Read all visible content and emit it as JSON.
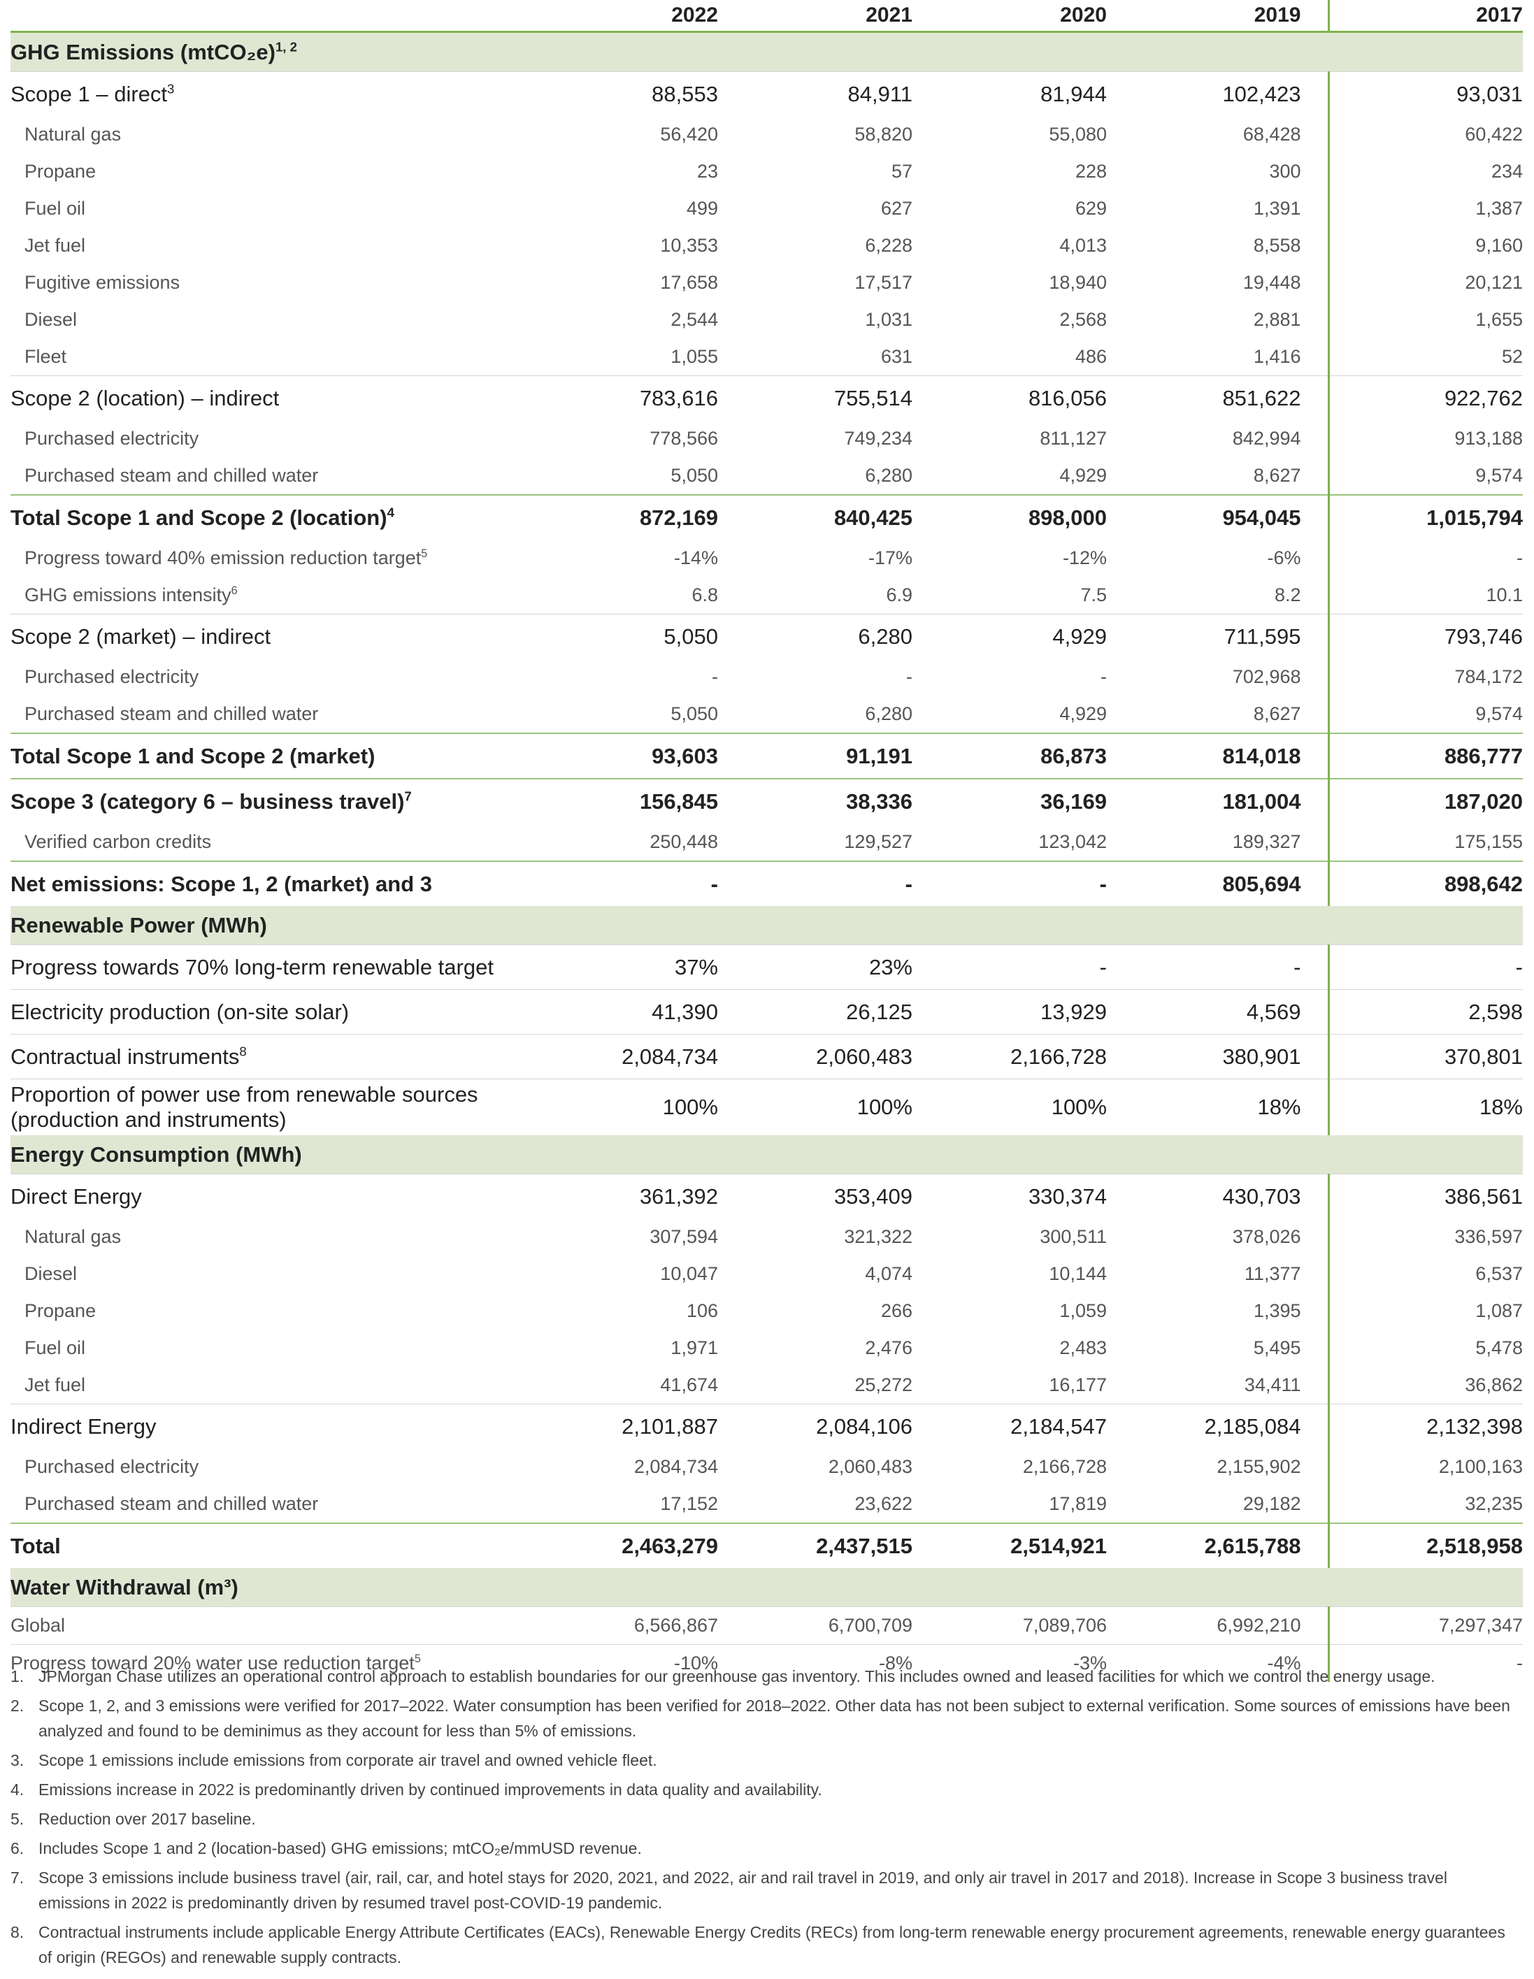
{
  "table": {
    "columns": [
      "2022",
      "2021",
      "2020",
      "2019",
      "2017"
    ],
    "sections": [
      {
        "title": "GHG Emissions (mtCO₂e)",
        "sup": "1, 2",
        "rows": [
          {
            "label": "Scope 1 – direct",
            "sup": "3",
            "style": "main",
            "values": [
              "88,553",
              "84,911",
              "81,944",
              "102,423",
              "93,031"
            ]
          },
          {
            "label": "Natural gas",
            "style": "sub",
            "values": [
              "56,420",
              "58,820",
              "55,080",
              "68,428",
              "60,422"
            ]
          },
          {
            "label": "Propane",
            "style": "sub",
            "values": [
              "23",
              "57",
              "228",
              "300",
              "234"
            ]
          },
          {
            "label": "Fuel oil",
            "style": "sub",
            "values": [
              "499",
              "627",
              "629",
              "1,391",
              "1,387"
            ]
          },
          {
            "label": "Jet fuel",
            "style": "sub",
            "values": [
              "10,353",
              "6,228",
              "4,013",
              "8,558",
              "9,160"
            ]
          },
          {
            "label": "Fugitive emissions",
            "style": "sub",
            "values": [
              "17,658",
              "17,517",
              "18,940",
              "19,448",
              "20,121"
            ]
          },
          {
            "label": "Diesel",
            "style": "sub",
            "values": [
              "2,544",
              "1,031",
              "2,568",
              "2,881",
              "1,655"
            ]
          },
          {
            "label": "Fleet",
            "style": "sub",
            "values": [
              "1,055",
              "631",
              "486",
              "1,416",
              "52"
            ]
          },
          {
            "label": "Scope 2 (location) – indirect",
            "style": "main",
            "values": [
              "783,616",
              "755,514",
              "816,056",
              "851,622",
              "922,762"
            ]
          },
          {
            "label": "Purchased electricity",
            "style": "sub",
            "values": [
              "778,566",
              "749,234",
              "811,127",
              "842,994",
              "913,188"
            ]
          },
          {
            "label": "Purchased steam and chilled water",
            "style": "sub",
            "values": [
              "5,050",
              "6,280",
              "4,929",
              "8,627",
              "9,574"
            ]
          },
          {
            "label": "Total Scope 1 and Scope 2 (location)",
            "sup": "4",
            "style": "bold",
            "values": [
              "872,169",
              "840,425",
              "898,000",
              "954,045",
              "1,015,794"
            ]
          },
          {
            "label": "Progress toward 40% emission reduction target",
            "sup": "5",
            "style": "sub",
            "values": [
              "-14%",
              "-17%",
              "-12%",
              "-6%",
              "-"
            ]
          },
          {
            "label": "GHG emissions intensity",
            "sup": "6",
            "style": "sub",
            "values": [
              "6.8",
              "6.9",
              "7.5",
              "8.2",
              "10.1"
            ]
          },
          {
            "label": "Scope 2 (market) – indirect",
            "style": "main",
            "values": [
              "5,050",
              "6,280",
              "4,929",
              "711,595",
              "793,746"
            ]
          },
          {
            "label": "Purchased electricity",
            "style": "sub",
            "values": [
              "-",
              "-",
              "-",
              "702,968",
              "784,172"
            ]
          },
          {
            "label": "Purchased steam and chilled water",
            "style": "sub",
            "values": [
              "5,050",
              "6,280",
              "4,929",
              "8,627",
              "9,574"
            ]
          },
          {
            "label": "Total Scope 1 and Scope 2 (market)",
            "style": "bold",
            "values": [
              "93,603",
              "91,191",
              "86,873",
              "814,018",
              "886,777"
            ]
          },
          {
            "label": "Scope 3 (category 6 – business travel)",
            "sup": "7",
            "style": "bold",
            "values": [
              "156,845",
              "38,336",
              "36,169",
              "181,004",
              "187,020"
            ]
          },
          {
            "label": "Verified carbon credits",
            "style": "sub",
            "values": [
              "250,448",
              "129,527",
              "123,042",
              "189,327",
              "175,155"
            ]
          },
          {
            "label": "Net emissions: Scope 1, 2 (market) and 3",
            "style": "bold",
            "values": [
              "-",
              "-",
              "-",
              "805,694",
              "898,642"
            ]
          }
        ]
      },
      {
        "title": "Renewable Power (MWh)",
        "rows": [
          {
            "label": "Progress towards 70% long-term renewable target",
            "style": "main",
            "values": [
              "37%",
              "23%",
              "-",
              "-",
              "-"
            ]
          },
          {
            "label": "Electricity production (on-site solar)",
            "style": "main",
            "values": [
              "41,390",
              "26,125",
              "13,929",
              "4,569",
              "2,598"
            ]
          },
          {
            "label": "Contractual instruments",
            "sup": "8",
            "style": "main",
            "values": [
              "2,084,734",
              "2,060,483",
              "2,166,728",
              "380,901",
              "370,801"
            ]
          },
          {
            "label": "Proportion of power use from renewable sources (production and instruments)",
            "style": "main",
            "values": [
              "100%",
              "100%",
              "100%",
              "18%",
              "18%"
            ]
          }
        ]
      },
      {
        "title": "Energy Consumption (MWh)",
        "rows": [
          {
            "label": "Direct Energy",
            "style": "main",
            "values": [
              "361,392",
              "353,409",
              "330,374",
              "430,703",
              "386,561"
            ]
          },
          {
            "label": "Natural gas",
            "style": "sub",
            "values": [
              "307,594",
              "321,322",
              "300,511",
              "378,026",
              "336,597"
            ]
          },
          {
            "label": "Diesel",
            "style": "sub",
            "values": [
              "10,047",
              "4,074",
              "10,144",
              "11,377",
              "6,537"
            ]
          },
          {
            "label": "Propane",
            "style": "sub",
            "values": [
              "106",
              "266",
              "1,059",
              "1,395",
              "1,087"
            ]
          },
          {
            "label": "Fuel oil",
            "style": "sub",
            "values": [
              "1,971",
              "2,476",
              "2,483",
              "5,495",
              "5,478"
            ]
          },
          {
            "label": "Jet fuel",
            "style": "sub",
            "values": [
              "41,674",
              "25,272",
              "16,177",
              "34,411",
              "36,862"
            ]
          },
          {
            "label": "Indirect Energy",
            "style": "main",
            "values": [
              "2,101,887",
              "2,084,106",
              "2,184,547",
              "2,185,084",
              "2,132,398"
            ]
          },
          {
            "label": "Purchased electricity",
            "style": "sub",
            "values": [
              "2,084,734",
              "2,060,483",
              "2,166,728",
              "2,155,902",
              "2,100,163"
            ]
          },
          {
            "label": "Purchased steam and chilled water",
            "style": "sub",
            "values": [
              "17,152",
              "23,622",
              "17,819",
              "29,182",
              "32,235"
            ]
          },
          {
            "label": "Total",
            "style": "bold",
            "values": [
              "2,463,279",
              "2,437,515",
              "2,514,921",
              "2,615,788",
              "2,518,958"
            ]
          }
        ]
      },
      {
        "title": "Water Withdrawal (m³)",
        "rows": [
          {
            "label": "Global",
            "style": "plain",
            "values": [
              "6,566,867",
              "6,700,709",
              "7,089,706",
              "6,992,210",
              "7,297,347"
            ]
          },
          {
            "label": "Progress toward 20% water use reduction target",
            "sup": "5",
            "style": "plain",
            "values": [
              "-10%",
              "-8%",
              "-3%",
              "-4%",
              "-"
            ]
          }
        ]
      }
    ]
  },
  "footnotes": [
    {
      "number": "1.",
      "text": "JPMorgan Chase utilizes an operational control approach to establish boundaries for our greenhouse gas inventory. This includes owned and leased facilities for which we control the energy usage."
    },
    {
      "number": "2.",
      "text": "Scope 1, 2, and 3 emissions were verified for 2017–2022. Water consumption has been verified for 2018–2022. Other data has not been subject to external verification. Some sources of emissions have been analyzed and found to be deminimus as they account for less than 5% of emissions."
    },
    {
      "number": "3.",
      "text": "Scope 1 emissions include emissions from corporate air travel and owned vehicle fleet."
    },
    {
      "number": "4.",
      "text": "Emissions increase in 2022 is predominantly driven by continued improvements in data quality and availability."
    },
    {
      "number": "5.",
      "text": "Reduction over 2017 baseline."
    },
    {
      "number": "6.",
      "text": "Includes Scope 1 and 2 (location-based) GHG emissions; mtCO₂e/mmUSD revenue."
    },
    {
      "number": "7.",
      "text": "Scope 3 emissions include business travel (air, rail, car, and hotel stays for 2020, 2021, and 2022, air and rail travel in 2019, and only air travel in 2017 and 2018). Increase in Scope 3 business travel emissions in 2022 is predominantly driven by resumed travel post-COVID-19 pandemic."
    },
    {
      "number": "8.",
      "text": "Contractual instruments include applicable Energy Attribute Certificates (EACs), Renewable Energy Credits (RECs) from long-term renewable energy procurement agreements, renewable energy guarantees of origin (REGOs) and renewable supply contracts."
    }
  ]
}
